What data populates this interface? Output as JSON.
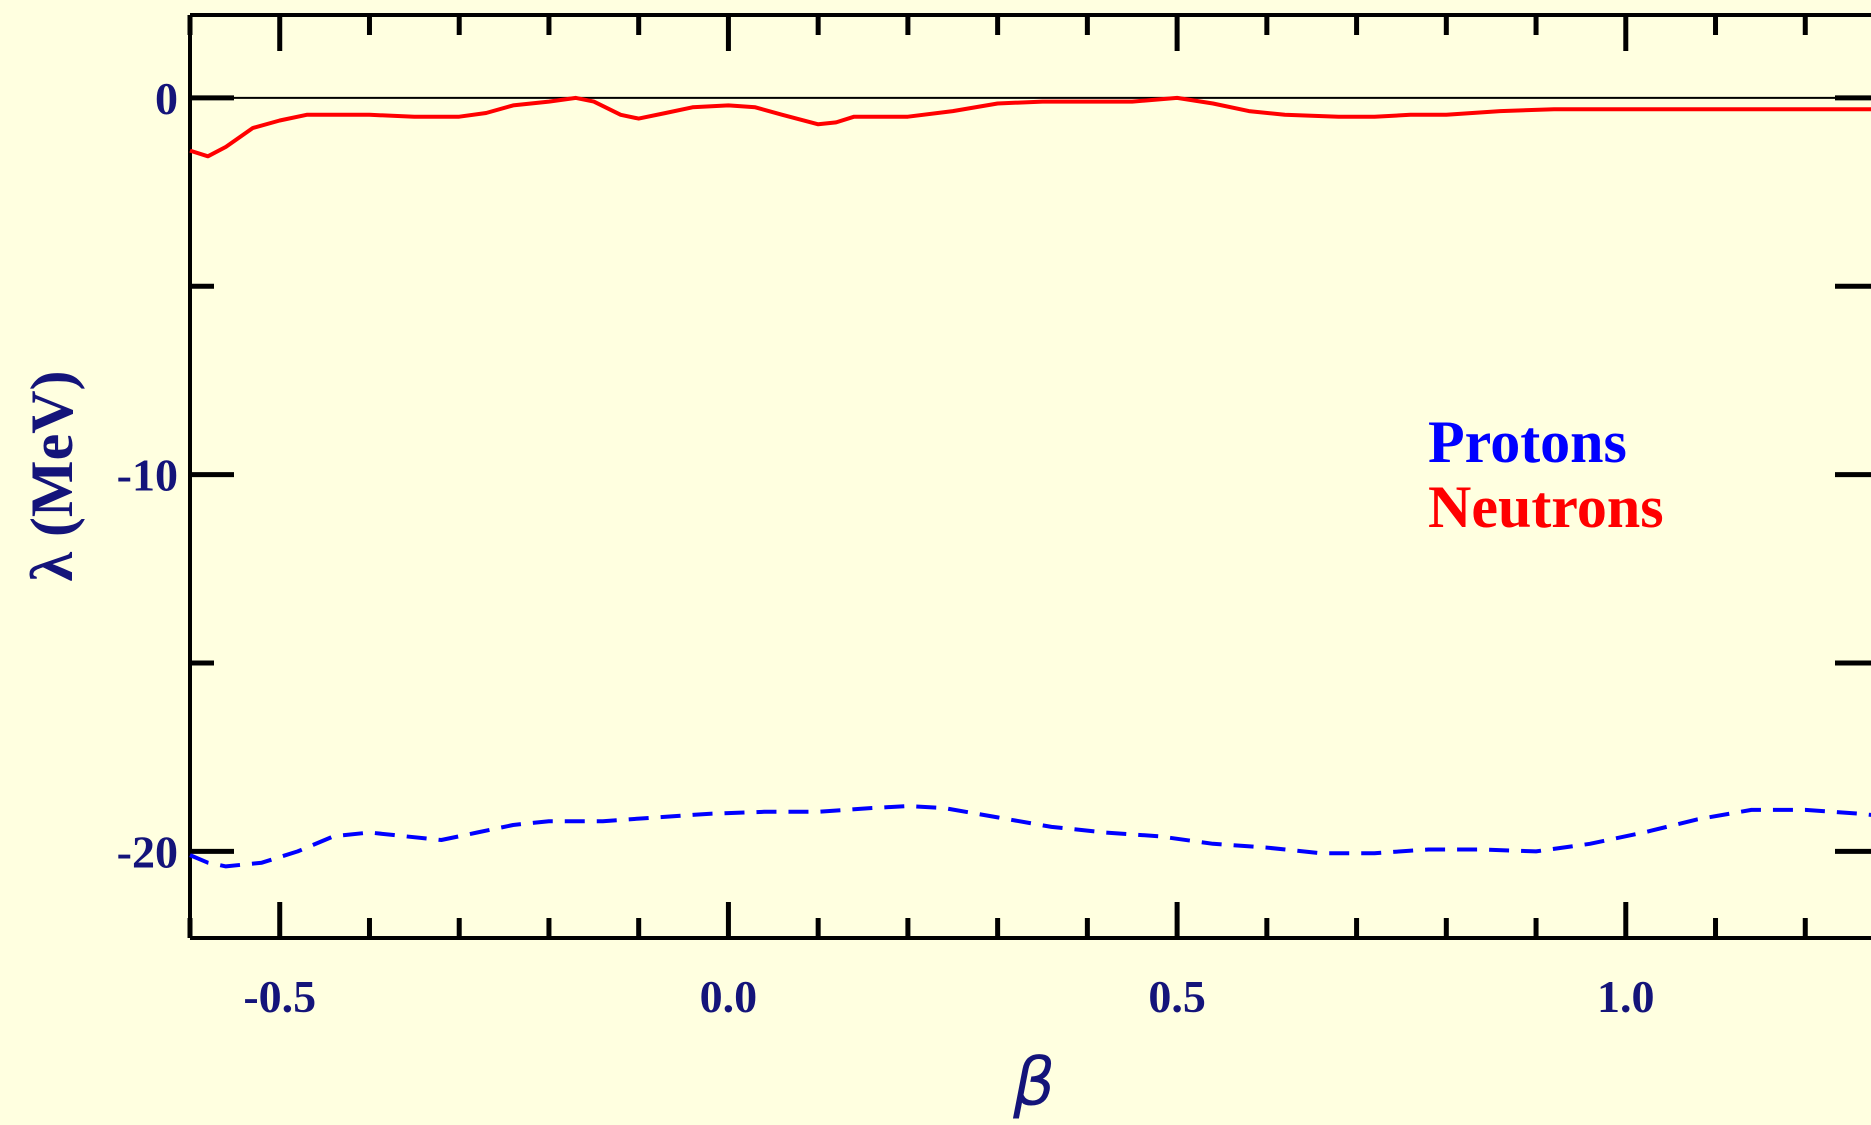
{
  "chart_data": {
    "type": "line",
    "xlabel": "β",
    "ylabel": "λ (MeV)",
    "xlim": [
      -0.6,
      1.3
    ],
    "ylim": [
      -22.3,
      2.2
    ],
    "x_ticks": [
      -0.5,
      0.0,
      0.5,
      1.0
    ],
    "x_tick_labels": [
      "-0.5",
      "0.0",
      "0.5",
      "1.0"
    ],
    "y_ticks": [
      0,
      -10,
      -20
    ],
    "y_tick_labels": [
      "0",
      "-10",
      "-20"
    ],
    "reference_line": 0,
    "legend_placement": "center-right",
    "colors": {
      "background": "#ffffe0",
      "axis_text": "#14147a",
      "protons": "#0000ff",
      "neutrons": "#ff0000"
    },
    "series": [
      {
        "name": "Protons",
        "style": "dashed",
        "x": [
          -0.6,
          -0.58,
          -0.56,
          -0.52,
          -0.48,
          -0.44,
          -0.4,
          -0.36,
          -0.32,
          -0.28,
          -0.24,
          -0.2,
          -0.14,
          -0.08,
          -0.02,
          0.04,
          0.1,
          0.16,
          0.2,
          0.24,
          0.3,
          0.36,
          0.42,
          0.48,
          0.54,
          0.6,
          0.66,
          0.72,
          0.78,
          0.84,
          0.9,
          0.96,
          1.02,
          1.08,
          1.14,
          1.2,
          1.26,
          1.3
        ],
        "values": [
          -20.1,
          -20.3,
          -20.4,
          -20.3,
          -20.0,
          -19.6,
          -19.5,
          -19.6,
          -19.7,
          -19.5,
          -19.3,
          -19.2,
          -19.2,
          -19.1,
          -19.0,
          -18.95,
          -18.95,
          -18.85,
          -18.8,
          -18.85,
          -19.1,
          -19.35,
          -19.5,
          -19.6,
          -19.8,
          -19.9,
          -20.05,
          -20.05,
          -19.95,
          -19.95,
          -20.0,
          -19.8,
          -19.5,
          -19.15,
          -18.9,
          -18.9,
          -19.0,
          -19.1
        ]
      },
      {
        "name": "Neutrons",
        "style": "solid",
        "x": [
          -0.6,
          -0.58,
          -0.56,
          -0.53,
          -0.5,
          -0.47,
          -0.44,
          -0.4,
          -0.35,
          -0.3,
          -0.27,
          -0.24,
          -0.2,
          -0.17,
          -0.15,
          -0.12,
          -0.1,
          -0.07,
          -0.04,
          0.0,
          0.03,
          0.06,
          0.1,
          0.12,
          0.14,
          0.17,
          0.2,
          0.25,
          0.3,
          0.35,
          0.4,
          0.45,
          0.5,
          0.54,
          0.58,
          0.62,
          0.68,
          0.72,
          0.76,
          0.8,
          0.86,
          0.92,
          1.0,
          1.1,
          1.2,
          1.3
        ],
        "values": [
          -1.4,
          -1.55,
          -1.3,
          -0.8,
          -0.6,
          -0.45,
          -0.45,
          -0.45,
          -0.5,
          -0.5,
          -0.4,
          -0.2,
          -0.1,
          0.0,
          -0.1,
          -0.45,
          -0.55,
          -0.4,
          -0.25,
          -0.2,
          -0.25,
          -0.45,
          -0.7,
          -0.65,
          -0.5,
          -0.5,
          -0.5,
          -0.35,
          -0.15,
          -0.1,
          -0.1,
          -0.1,
          0.0,
          -0.15,
          -0.35,
          -0.45,
          -0.5,
          -0.5,
          -0.45,
          -0.45,
          -0.35,
          -0.3,
          -0.3,
          -0.3,
          -0.3,
          -0.3
        ]
      }
    ]
  }
}
